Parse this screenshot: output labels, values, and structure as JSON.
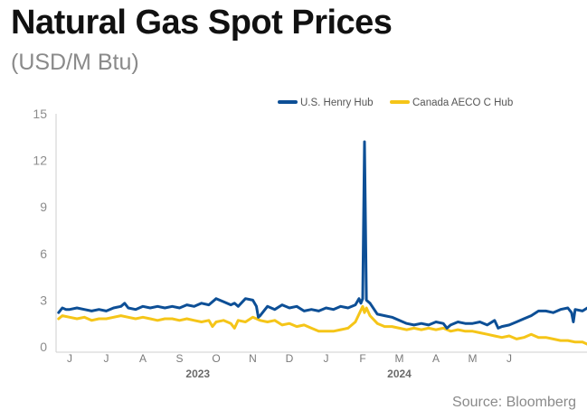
{
  "title": "Natural Gas Spot Prices",
  "subtitle": "(USD/M Btu)",
  "source": "Source: Bloomberg",
  "colors": {
    "henry": "#0d4f96",
    "aeco": "#f5c518",
    "axis": "#cfcfcf"
  },
  "chart_data": {
    "type": "line",
    "x_unit": "month",
    "ylim": [
      0,
      15
    ],
    "y_ticks": [
      0,
      3,
      6,
      9,
      12,
      15
    ],
    "month_ticks": [
      "J",
      "J",
      "A",
      "S",
      "O",
      "N",
      "D",
      "J",
      "F",
      "M",
      "A",
      "M",
      "J"
    ],
    "year_labels": [
      {
        "label": "2023",
        "month_index": 3.5
      },
      {
        "label": "2024",
        "month_index": 9
      }
    ],
    "legend": [
      "U.S. Henry Hub",
      "Canada AECO C Hub"
    ],
    "grid": false,
    "series": [
      {
        "name": "U.S. Henry Hub",
        "end_label": "2.39",
        "points": [
          [
            -0.3,
            2.2
          ],
          [
            -0.2,
            2.5
          ],
          [
            -0.1,
            2.4
          ],
          [
            0.0,
            2.4
          ],
          [
            0.2,
            2.5
          ],
          [
            0.4,
            2.4
          ],
          [
            0.6,
            2.3
          ],
          [
            0.8,
            2.4
          ],
          [
            1.0,
            2.3
          ],
          [
            1.2,
            2.5
          ],
          [
            1.4,
            2.6
          ],
          [
            1.5,
            2.8
          ],
          [
            1.6,
            2.5
          ],
          [
            1.8,
            2.4
          ],
          [
            2.0,
            2.6
          ],
          [
            2.2,
            2.5
          ],
          [
            2.4,
            2.6
          ],
          [
            2.6,
            2.5
          ],
          [
            2.8,
            2.6
          ],
          [
            3.0,
            2.5
          ],
          [
            3.2,
            2.7
          ],
          [
            3.4,
            2.6
          ],
          [
            3.6,
            2.8
          ],
          [
            3.8,
            2.7
          ],
          [
            4.0,
            3.1
          ],
          [
            4.2,
            2.9
          ],
          [
            4.4,
            2.7
          ],
          [
            4.5,
            2.8
          ],
          [
            4.6,
            2.6
          ],
          [
            4.8,
            3.1
          ],
          [
            5.0,
            3.0
          ],
          [
            5.1,
            2.6
          ],
          [
            5.15,
            1.9
          ],
          [
            5.2,
            2.0
          ],
          [
            5.4,
            2.6
          ],
          [
            5.6,
            2.4
          ],
          [
            5.8,
            2.7
          ],
          [
            6.0,
            2.5
          ],
          [
            6.2,
            2.6
          ],
          [
            6.4,
            2.3
          ],
          [
            6.6,
            2.4
          ],
          [
            6.8,
            2.3
          ],
          [
            7.0,
            2.5
          ],
          [
            7.2,
            2.4
          ],
          [
            7.4,
            2.6
          ],
          [
            7.6,
            2.5
          ],
          [
            7.8,
            2.7
          ],
          [
            7.9,
            3.1
          ],
          [
            7.95,
            2.8
          ],
          [
            8.0,
            3.1
          ],
          [
            8.05,
            13.2
          ],
          [
            8.1,
            3.0
          ],
          [
            8.2,
            2.8
          ],
          [
            8.4,
            2.1
          ],
          [
            8.6,
            2.0
          ],
          [
            8.8,
            1.9
          ],
          [
            9.0,
            1.7
          ],
          [
            9.2,
            1.5
          ],
          [
            9.4,
            1.4
          ],
          [
            9.6,
            1.5
          ],
          [
            9.8,
            1.4
          ],
          [
            10.0,
            1.6
          ],
          [
            10.2,
            1.5
          ],
          [
            10.3,
            1.2
          ],
          [
            10.4,
            1.4
          ],
          [
            10.6,
            1.6
          ],
          [
            10.8,
            1.5
          ],
          [
            11.0,
            1.5
          ],
          [
            11.2,
            1.6
          ],
          [
            11.4,
            1.4
          ],
          [
            11.6,
            1.7
          ],
          [
            11.7,
            1.2
          ],
          [
            11.8,
            1.3
          ],
          [
            12.0,
            1.4
          ],
          [
            12.2,
            1.6
          ],
          [
            12.4,
            1.8
          ],
          [
            12.6,
            2.0
          ],
          [
            12.8,
            2.3
          ],
          [
            13.0,
            2.3
          ],
          [
            13.2,
            2.2
          ],
          [
            13.4,
            2.4
          ],
          [
            13.6,
            2.5
          ],
          [
            13.7,
            2.2
          ],
          [
            13.75,
            1.6
          ],
          [
            13.8,
            2.4
          ],
          [
            14.0,
            2.3
          ],
          [
            14.2,
            2.6
          ],
          [
            14.4,
            2.7
          ],
          [
            14.5,
            2.5
          ],
          [
            14.6,
            2.6
          ],
          [
            14.7,
            2.39
          ]
        ]
      },
      {
        "name": "Canada AECO C Hub",
        "end_label": "0.65",
        "points": [
          [
            -0.3,
            1.8
          ],
          [
            -0.2,
            2.0
          ],
          [
            0.0,
            1.9
          ],
          [
            0.2,
            1.8
          ],
          [
            0.4,
            1.9
          ],
          [
            0.6,
            1.7
          ],
          [
            0.8,
            1.8
          ],
          [
            1.0,
            1.8
          ],
          [
            1.2,
            1.9
          ],
          [
            1.4,
            2.0
          ],
          [
            1.6,
            1.9
          ],
          [
            1.8,
            1.8
          ],
          [
            2.0,
            1.9
          ],
          [
            2.2,
            1.8
          ],
          [
            2.4,
            1.7
          ],
          [
            2.6,
            1.8
          ],
          [
            2.8,
            1.8
          ],
          [
            3.0,
            1.7
          ],
          [
            3.2,
            1.8
          ],
          [
            3.4,
            1.7
          ],
          [
            3.6,
            1.6
          ],
          [
            3.8,
            1.7
          ],
          [
            3.9,
            1.3
          ],
          [
            4.0,
            1.6
          ],
          [
            4.2,
            1.7
          ],
          [
            4.4,
            1.5
          ],
          [
            4.5,
            1.2
          ],
          [
            4.6,
            1.7
          ],
          [
            4.8,
            1.6
          ],
          [
            5.0,
            1.9
          ],
          [
            5.2,
            1.7
          ],
          [
            5.4,
            1.6
          ],
          [
            5.6,
            1.7
          ],
          [
            5.8,
            1.4
          ],
          [
            6.0,
            1.5
          ],
          [
            6.2,
            1.3
          ],
          [
            6.4,
            1.4
          ],
          [
            6.6,
            1.2
          ],
          [
            6.8,
            1.0
          ],
          [
            7.0,
            1.0
          ],
          [
            7.2,
            1.0
          ],
          [
            7.4,
            1.1
          ],
          [
            7.6,
            1.2
          ],
          [
            7.8,
            1.6
          ],
          [
            8.0,
            2.6
          ],
          [
            8.05,
            2.2
          ],
          [
            8.1,
            2.5
          ],
          [
            8.2,
            2.0
          ],
          [
            8.4,
            1.5
          ],
          [
            8.6,
            1.3
          ],
          [
            8.8,
            1.3
          ],
          [
            9.0,
            1.2
          ],
          [
            9.2,
            1.1
          ],
          [
            9.4,
            1.2
          ],
          [
            9.6,
            1.1
          ],
          [
            9.8,
            1.2
          ],
          [
            10.0,
            1.1
          ],
          [
            10.2,
            1.2
          ],
          [
            10.4,
            1.0
          ],
          [
            10.6,
            1.1
          ],
          [
            10.8,
            1.0
          ],
          [
            11.0,
            1.0
          ],
          [
            11.2,
            0.9
          ],
          [
            11.4,
            0.8
          ],
          [
            11.6,
            0.7
          ],
          [
            11.8,
            0.6
          ],
          [
            12.0,
            0.7
          ],
          [
            12.2,
            0.5
          ],
          [
            12.4,
            0.6
          ],
          [
            12.6,
            0.8
          ],
          [
            12.8,
            0.6
          ],
          [
            13.0,
            0.6
          ],
          [
            13.2,
            0.5
          ],
          [
            13.4,
            0.4
          ],
          [
            13.6,
            0.4
          ],
          [
            13.8,
            0.3
          ],
          [
            14.0,
            0.3
          ],
          [
            14.2,
            0.1
          ],
          [
            14.3,
            0.3
          ],
          [
            14.4,
            0.5
          ],
          [
            14.5,
            0.6
          ],
          [
            14.7,
            0.65
          ]
        ]
      }
    ]
  }
}
